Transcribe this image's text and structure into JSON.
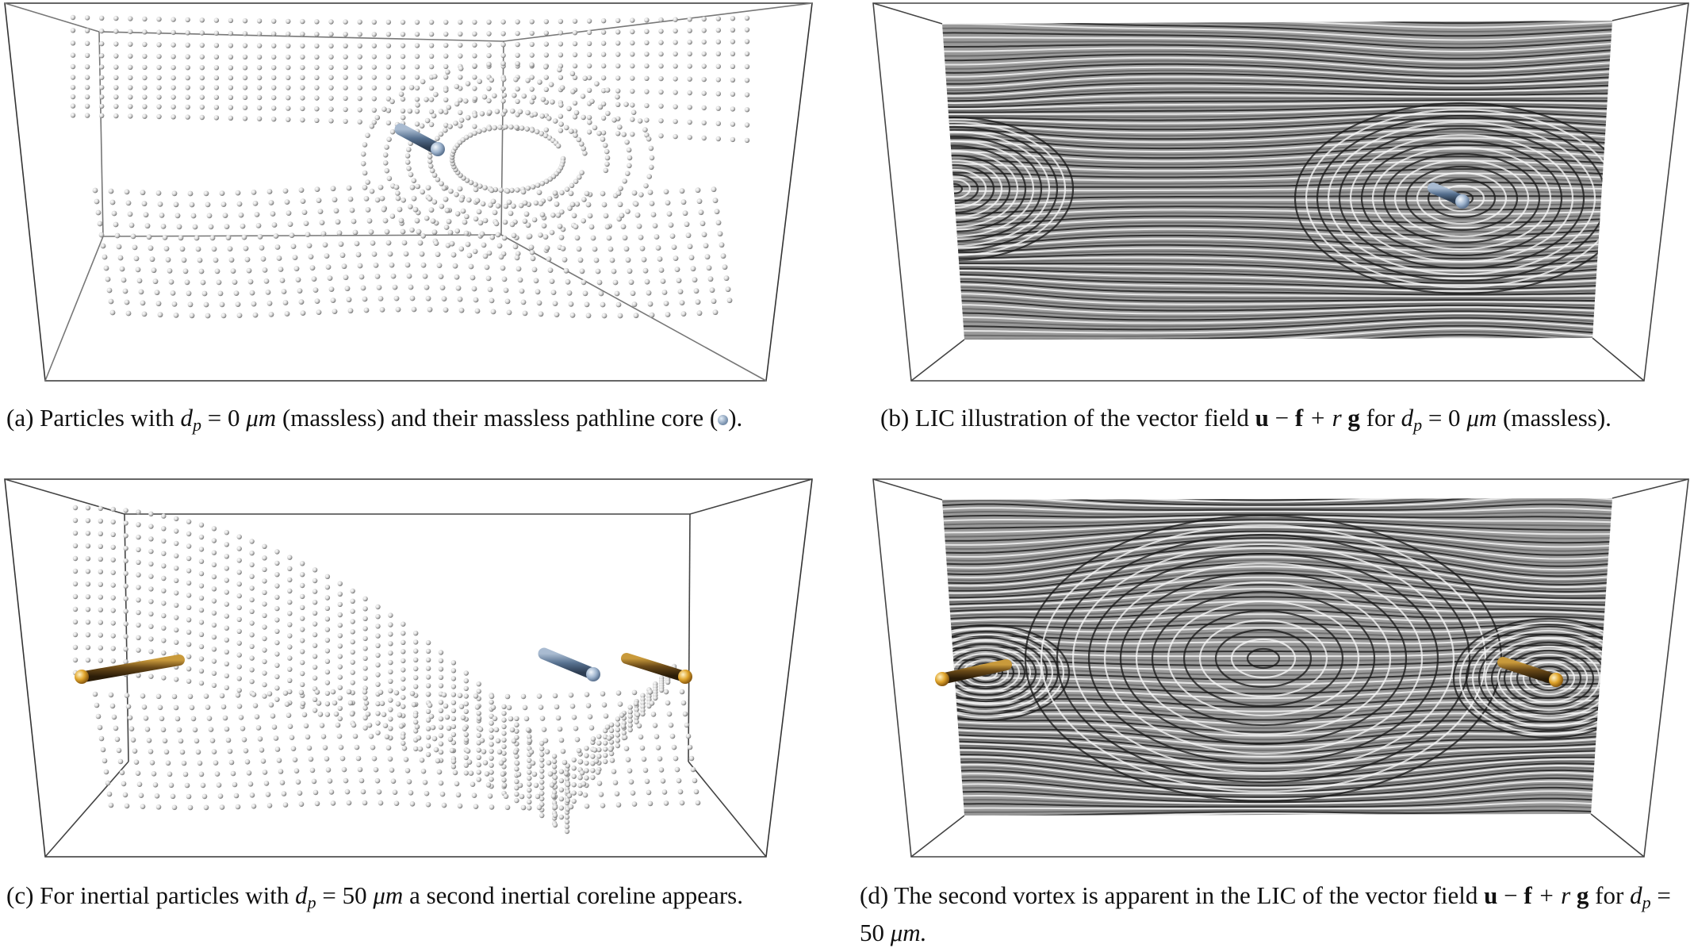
{
  "figure": {
    "panels": [
      {
        "id": "a",
        "view": "particles",
        "caption": {
          "label": "(a)",
          "text_1": "Particles with",
          "var": "d",
          "sub": "p",
          "eq": "= 0",
          "unit": "μm",
          "text_2": "(massless) and their massless pathline core (",
          "text_3": ")."
        },
        "corelines": [
          {
            "kind": "massless",
            "color": "#8fa7c4"
          }
        ]
      },
      {
        "id": "b",
        "view": "lic",
        "caption": {
          "label": "(b)",
          "text_1": "LIC illustration of the vector field",
          "bold_u": "u",
          "minus": "−",
          "bold_f": "f",
          "plus_r": "+ r",
          "bold_g": "g",
          "text_2": "for",
          "var": "d",
          "sub": "p",
          "eq": "= 0",
          "unit": "μm",
          "text_3": "(massless)."
        },
        "corelines": [
          {
            "kind": "massless",
            "color": "#8fa7c4"
          }
        ]
      },
      {
        "id": "c",
        "view": "particles",
        "caption": {
          "label": "(c)",
          "text_1": "For inertial particles with",
          "var": "d",
          "sub": "p",
          "eq": "= 50",
          "unit": "μm",
          "text_2": "a second inertial coreline appears."
        },
        "corelines": [
          {
            "kind": "inertial",
            "color": "#d4a23a"
          },
          {
            "kind": "massless",
            "color": "#8fa7c4"
          },
          {
            "kind": "inertial",
            "color": "#d4a23a"
          }
        ]
      },
      {
        "id": "d",
        "view": "lic",
        "caption": {
          "label": "(d)",
          "text_1": "The second vortex is apparent in the LIC of the vector field",
          "bold_u": "u",
          "minus": "−",
          "bold_f": "f",
          "plus_r": "+ r",
          "bold_g": "g",
          "text_2": "for",
          "var": "d",
          "sub": "p",
          "eq": "= 50",
          "unit": "μm."
        },
        "corelines": [
          {
            "kind": "inertial",
            "color": "#d4a23a"
          },
          {
            "kind": "inertial",
            "color": "#d4a23a"
          }
        ]
      }
    ]
  }
}
